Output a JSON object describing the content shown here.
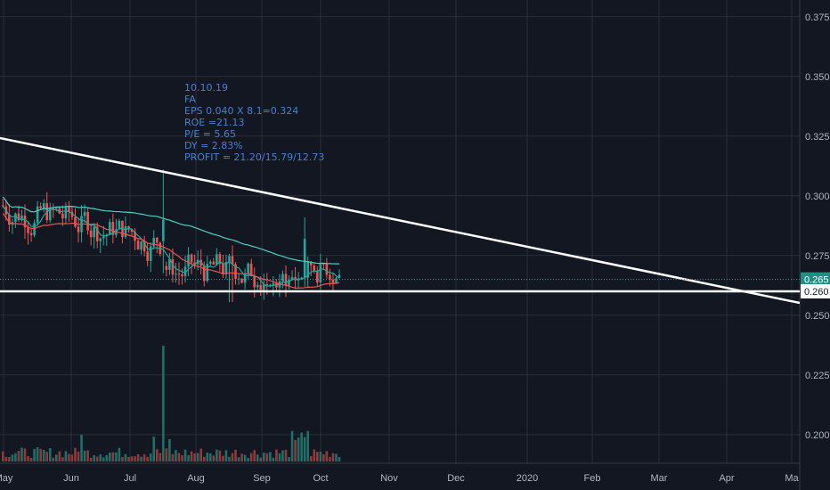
{
  "chart_data": {
    "type": "candlestick",
    "x_ticks": [
      "May",
      "Jun",
      "Jul",
      "Aug",
      "Sep",
      "Oct",
      "Nov",
      "Dec",
      "2020",
      "Feb",
      "Mar",
      "Apr",
      "Ma"
    ],
    "y_ticks": [
      "0.375",
      "0.350",
      "0.325",
      "0.300",
      "0.275",
      "0.250",
      "0.225",
      "0.200"
    ],
    "ylim": [
      0.188,
      0.382
    ],
    "last_price": "0.265",
    "support_level": "0.260",
    "annotation_lines": [
      "10.10.19",
      "FA",
      "EPS 0.040 X 8.1=0.324",
      "ROE =21.13",
      "P/E = 5.65",
      "DY = 2.83%",
      "PROFIT = 21.20/15.79/12.73"
    ],
    "colors": {
      "background": "#131722",
      "grid": "#2a2e39",
      "text": "#b2b5be",
      "up": "#26a69a",
      "down": "#ef5350",
      "ma_fast": "#26a69a",
      "ma_slow": "#c62828",
      "trendline": "#ffffff",
      "annotation": "#4a7fd0",
      "price_line": "#26a69a"
    }
  }
}
